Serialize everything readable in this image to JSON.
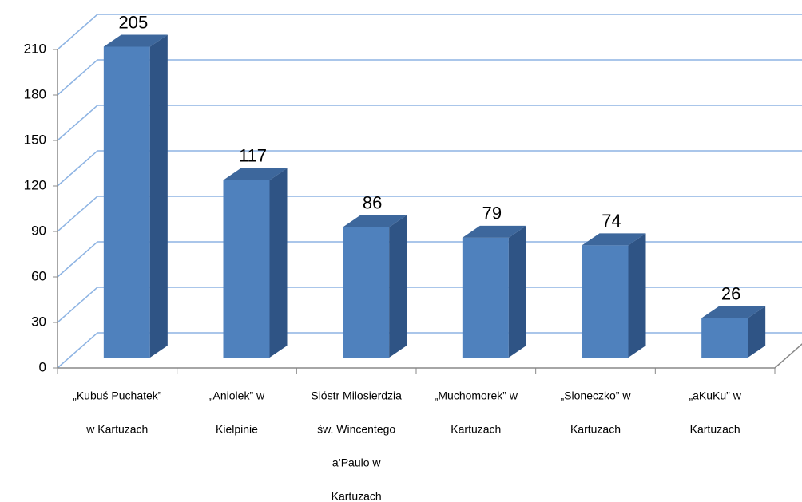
{
  "chart_data": {
    "type": "bar3d",
    "categories": [
      [
        "„Kubuś Puchatek”",
        "w Kartuzach"
      ],
      [
        "„Aniolek” w",
        "Kielpinie"
      ],
      [
        "Sióstr Milosierdzia",
        "św. Wincentego",
        "a’Paulo w",
        "Kartuzach"
      ],
      [
        "„Muchomorek” w",
        "Kartuzach"
      ],
      [
        "„Sloneczko” w",
        "Kartuzach"
      ],
      [
        "„aKuKu” w",
        "Kartuzach"
      ]
    ],
    "values": [
      205,
      117,
      86,
      79,
      74,
      26
    ],
    "color": "#4f81bd",
    "ylim": [
      0,
      210
    ],
    "yticks": [
      0,
      30,
      60,
      90,
      120,
      150,
      180,
      210
    ],
    "grid": true
  }
}
